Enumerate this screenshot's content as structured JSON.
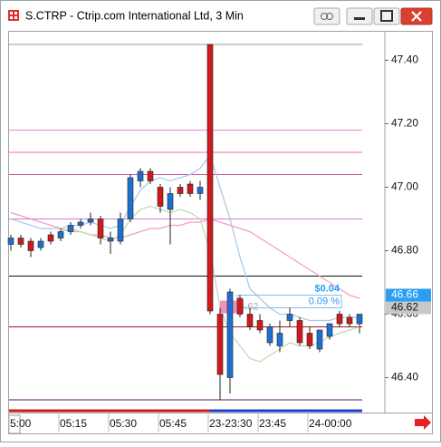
{
  "window_title": "S.CTRP - Ctrip.com International Ltd, 3 Min",
  "chart_data": {
    "type": "candlestick",
    "categories": [
      "5:00",
      null,
      null,
      null,
      null,
      "05:15",
      null,
      null,
      null,
      null,
      "05:30",
      null,
      null,
      null,
      null,
      "05:45",
      null,
      null,
      null,
      null,
      "23-23:30",
      null,
      null,
      null,
      null,
      "23:45",
      null,
      null,
      null,
      null,
      "24-00:00",
      null,
      null,
      null,
      null,
      null
    ],
    "open": [
      46.82,
      46.84,
      46.83,
      46.81,
      46.85,
      46.84,
      46.86,
      46.88,
      46.89,
      46.9,
      46.83,
      46.83,
      46.9,
      47.02,
      47.05,
      47.0,
      46.93,
      47.0,
      47.01,
      46.98,
      47.45,
      46.6,
      46.4,
      46.65,
      46.6,
      46.58,
      46.51,
      46.5,
      46.58,
      46.58,
      46.54,
      46.49,
      46.53,
      46.6,
      46.59,
      46.57
    ],
    "high": [
      46.85,
      46.85,
      46.84,
      46.84,
      46.86,
      46.87,
      46.89,
      46.9,
      46.92,
      46.91,
      46.86,
      46.92,
      47.04,
      47.06,
      47.06,
      47.01,
      47.0,
      47.01,
      47.02,
      47.02,
      47.45,
      46.62,
      46.68,
      46.66,
      46.62,
      46.6,
      46.57,
      46.58,
      46.62,
      46.59,
      46.56,
      46.55,
      46.57,
      46.61,
      46.6,
      46.6
    ],
    "low": [
      46.8,
      46.81,
      46.78,
      46.8,
      46.82,
      46.83,
      46.85,
      46.87,
      46.88,
      46.82,
      46.79,
      46.82,
      46.89,
      47.0,
      47.01,
      46.92,
      46.82,
      46.97,
      46.97,
      46.96,
      46.6,
      46.33,
      46.35,
      46.59,
      46.55,
      46.54,
      46.5,
      46.48,
      46.56,
      46.5,
      46.49,
      46.48,
      46.52,
      46.56,
      46.56,
      46.54
    ],
    "close": [
      46.84,
      46.82,
      46.8,
      46.83,
      46.83,
      46.86,
      46.88,
      46.89,
      46.9,
      46.84,
      46.84,
      46.9,
      47.03,
      47.05,
      47.02,
      46.94,
      46.98,
      46.98,
      46.98,
      47.0,
      46.61,
      46.41,
      46.67,
      46.6,
      46.56,
      46.55,
      46.56,
      46.54,
      46.6,
      46.51,
      46.5,
      46.55,
      46.57,
      46.57,
      46.57,
      46.6
    ],
    "up_color": "#1f6fd1",
    "down_color": "#d0191b",
    "overlays": [
      {
        "color": "#a9cbe8",
        "values": [
          46.9,
          46.89,
          46.88,
          46.87,
          46.87,
          46.87,
          46.88,
          46.88,
          46.89,
          46.88,
          46.87,
          46.88,
          46.94,
          46.99,
          47.02,
          47.03,
          47.02,
          47.03,
          47.04,
          47.06,
          47.1,
          47.0,
          46.9,
          46.78,
          46.68,
          46.65,
          46.62,
          46.6,
          46.6,
          46.59,
          46.58,
          46.58,
          46.58,
          46.59,
          46.59,
          46.59
        ]
      },
      {
        "color": "#f0a0c0",
        "values": [
          46.92,
          46.91,
          46.9,
          46.89,
          46.88,
          46.87,
          46.86,
          46.86,
          46.85,
          46.85,
          46.84,
          46.84,
          46.85,
          46.86,
          46.87,
          46.87,
          46.88,
          46.88,
          46.89,
          46.89,
          46.9,
          46.89,
          46.88,
          46.87,
          46.86,
          46.84,
          46.82,
          46.8,
          46.78,
          46.76,
          46.74,
          46.72,
          46.7,
          46.68,
          46.66,
          46.65
        ]
      },
      {
        "color": "#bfdcb4",
        "values": [
          null,
          null,
          null,
          null,
          null,
          46.86,
          46.87,
          46.86,
          46.85,
          46.84,
          46.83,
          46.85,
          46.9,
          46.93,
          46.94,
          46.93,
          46.92,
          46.93,
          46.92,
          46.9,
          46.8,
          46.62,
          46.54,
          46.5,
          46.46,
          46.45,
          46.47,
          46.49,
          46.51,
          46.5,
          46.5,
          46.51,
          46.53,
          46.54,
          46.55,
          46.56
        ]
      }
    ],
    "levels": [
      {
        "value": 47.45,
        "color": "#9a9a9a"
      },
      {
        "value": 47.18,
        "color": "#e58ad0"
      },
      {
        "value": 47.11,
        "color": "#f06fa8"
      },
      {
        "value": 47.04,
        "color": "#c65aa0"
      },
      {
        "value": 46.9,
        "color": "#d77ae0"
      },
      {
        "value": 46.72,
        "color": "#111111"
      },
      {
        "value": 46.56,
        "color": "#a01525"
      },
      {
        "value": 46.33,
        "color": "#5a1060"
      }
    ],
    "ylim": [
      46.29,
      47.49
    ],
    "yticks": [
      {
        "value": 46.4,
        "label": "46.40"
      },
      {
        "value": 46.6,
        "label": "46.60"
      },
      {
        "value": 46.8,
        "label": "46.80"
      },
      {
        "value": 47.0,
        "label": "47.00"
      },
      {
        "value": 47.2,
        "label": "47.20"
      },
      {
        "value": 47.4,
        "label": "47.40"
      }
    ],
    "price_tags": [
      {
        "value": 46.66,
        "label": "46.66",
        "color": "#2a9df4"
      },
      {
        "value": 46.62,
        "label": "46.62",
        "color": "#c8c8c8"
      }
    ],
    "measure": {
      "from": 46.62,
      "to": 46.66,
      "label": "$0.04",
      "pct_label": "0.09 %"
    },
    "marker": {
      "value": 46.62,
      "label": "46.62"
    }
  }
}
